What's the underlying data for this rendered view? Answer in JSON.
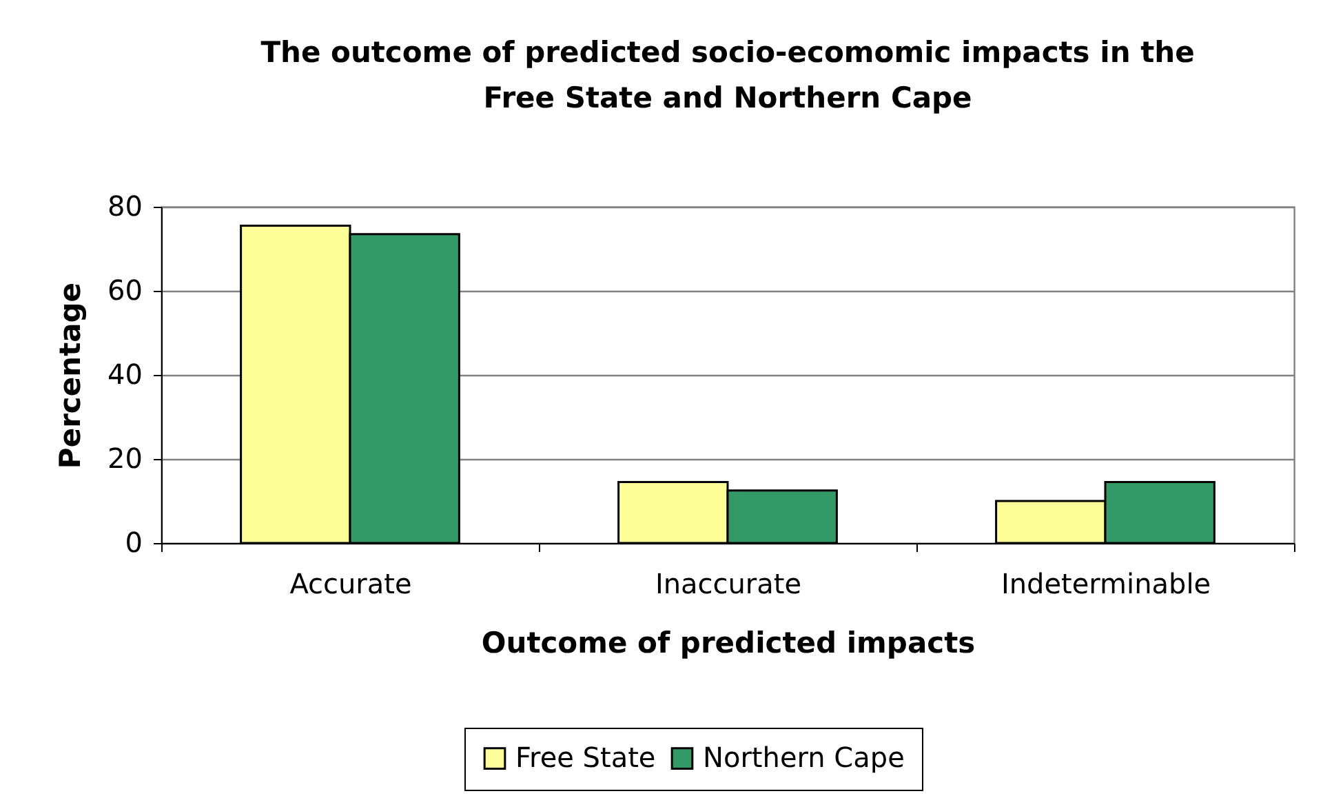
{
  "chart_data": {
    "type": "bar",
    "title": [
      "The outcome of predicted socio-ecomomic impacts in the",
      "Free State and Northern Cape"
    ],
    "xlabel": "Outcome of predicted impacts",
    "ylabel": "Percentage",
    "categories": [
      "Accurate",
      "Inaccurate",
      "Indeterminable"
    ],
    "series": [
      {
        "name": "Free State",
        "color": "#ffff99",
        "values": [
          75.5,
          14.5,
          10
        ]
      },
      {
        "name": "Northern Cape",
        "color": "#339966",
        "values": [
          73.5,
          12.5,
          14.5
        ]
      }
    ],
    "ylim": [
      0,
      80
    ],
    "yticks": [
      0,
      20,
      40,
      60,
      80
    ],
    "grid": "y",
    "legend": "bottom"
  }
}
